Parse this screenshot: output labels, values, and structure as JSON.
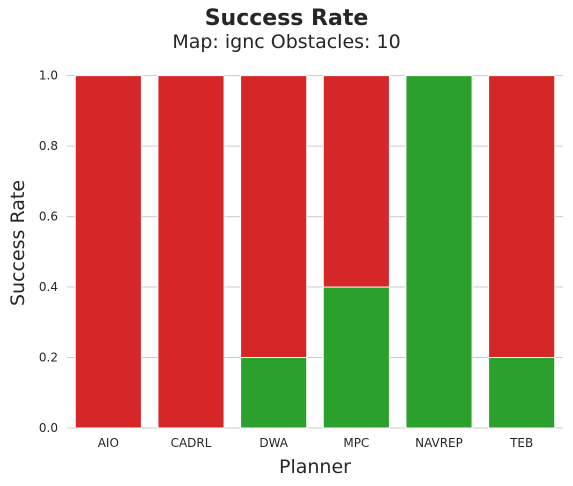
{
  "chart_data": {
    "type": "bar",
    "title": "Success Rate",
    "subtitle": "Map: ignc Obstacles: 10",
    "xlabel": "Planner",
    "ylabel": "Success Rate",
    "categories": [
      "AIO",
      "CADRL",
      "DWA",
      "MPC",
      "NAVREP",
      "TEB"
    ],
    "series": [
      {
        "values": [
          1.0,
          1.0,
          1.0,
          1.0,
          1.0,
          1.0
        ],
        "color": "#d62728"
      },
      {
        "values": [
          0.0,
          0.0,
          0.2,
          0.4,
          1.0,
          0.2
        ],
        "color": "#2ca02c"
      }
    ],
    "ylim": [
      0,
      1.05
    ],
    "yticks": [
      "0.0",
      "0.2",
      "0.4",
      "0.6",
      "0.8",
      "1.0"
    ],
    "grid": true,
    "style": {
      "background": "#ffffff",
      "grid_color": "#cccccc",
      "text_color": "#262626"
    }
  }
}
